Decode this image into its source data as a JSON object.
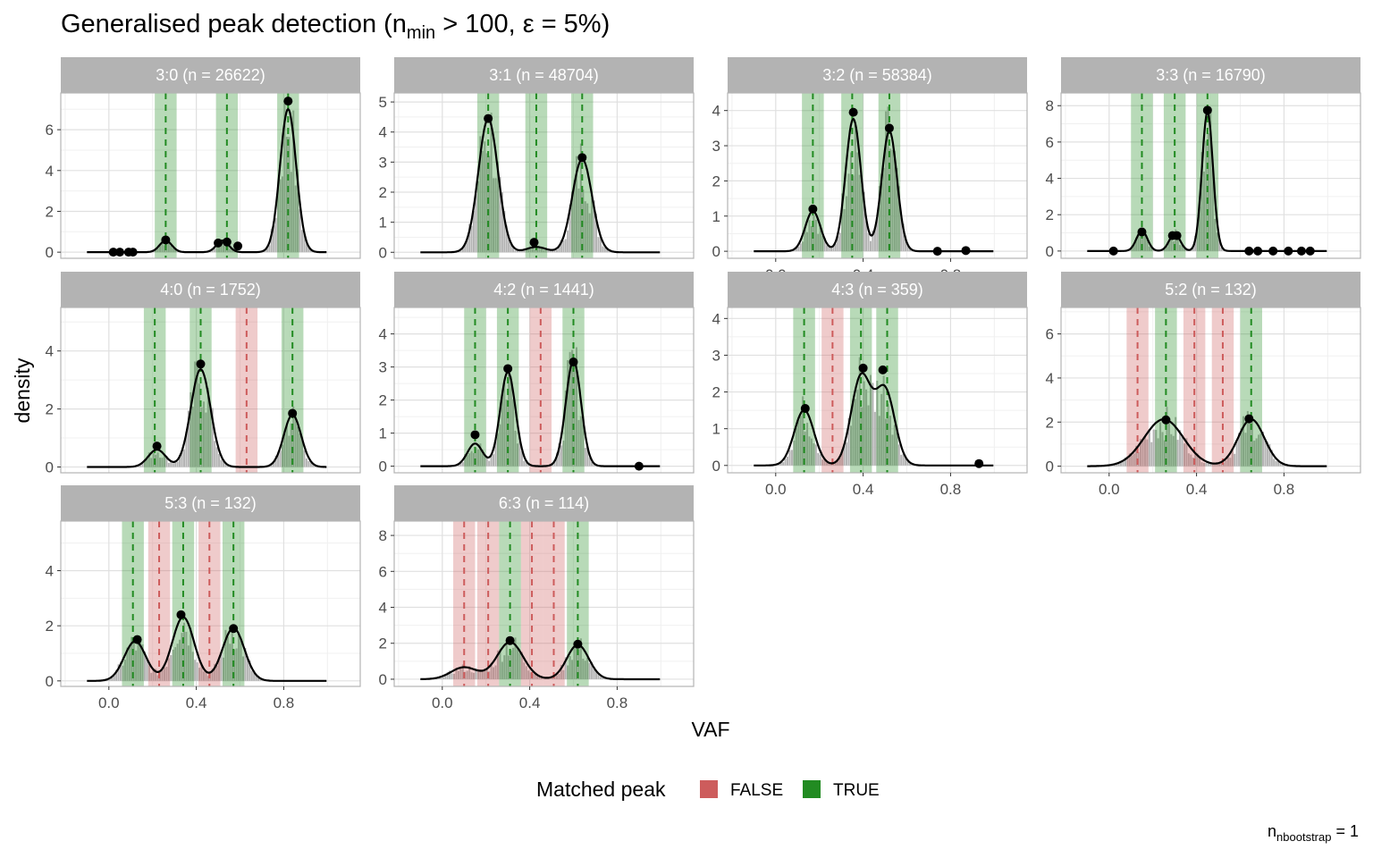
{
  "title": {
    "prefix": "Generalised peak detection (n",
    "sub": "min",
    "suffix": " > 100, ε = 5%)"
  },
  "caption": {
    "prefix": "n",
    "sub": "nbootstrap",
    "suffix": " = 1"
  },
  "legend": {
    "title": "Matched peak",
    "items": [
      {
        "label": "FALSE",
        "color": "#cd5c5c"
      },
      {
        "label": "TRUE",
        "color": "#228b22"
      }
    ]
  },
  "colors": {
    "matched": "#228b22",
    "unmatched": "#cd5c5c",
    "histogram": "#b3b3b3",
    "density": "#000000",
    "strip": "#b3b3b3",
    "grid_major": "#e0e0e0",
    "grid_minor": "#f0f0f0",
    "panel_border": "#b3b3b3"
  },
  "chart_data": {
    "type": "faceted-histogram-density",
    "xlabel": "VAF",
    "ylabel": "density",
    "x_ticks": [
      0.0,
      0.4,
      0.8
    ],
    "x_tick_labels": [
      "0.0",
      "0.4",
      "0.8"
    ],
    "xlim": [
      -0.22,
      1.15
    ],
    "grid": true,
    "legend_position": "bottom",
    "facets": [
      {
        "label": "3:0 (n = 26622)",
        "ylim": [
          -0.3,
          7.8
        ],
        "y_ticks": [
          0,
          2,
          4,
          6
        ],
        "peaks": [
          {
            "x": 0.26,
            "matched": true
          },
          {
            "x": 0.54,
            "matched": true
          },
          {
            "x": 0.82,
            "matched": true
          }
        ],
        "components": [
          {
            "mu": 0.26,
            "sigma": 0.028,
            "w": 0.04
          },
          {
            "mu": 0.52,
            "sigma": 0.028,
            "w": 0.04
          },
          {
            "mu": 0.82,
            "sigma": 0.037,
            "w": 0.65
          }
        ],
        "detected": [
          [
            0.02,
            0.0
          ],
          [
            0.05,
            0.0
          ],
          [
            0.09,
            0.0
          ],
          [
            0.11,
            0.0
          ],
          [
            0.26,
            0.6
          ],
          [
            0.5,
            0.45
          ],
          [
            0.54,
            0.5
          ],
          [
            0.59,
            0.3
          ],
          [
            0.82,
            7.4
          ]
        ]
      },
      {
        "label": "3:1 (n = 48704)",
        "ylim": [
          -0.2,
          5.3
        ],
        "y_ticks": [
          0,
          1,
          2,
          3,
          4,
          5
        ],
        "peaks": [
          {
            "x": 0.21,
            "matched": true
          },
          {
            "x": 0.43,
            "matched": true
          },
          {
            "x": 0.64,
            "matched": true
          }
        ],
        "components": [
          {
            "mu": 0.21,
            "sigma": 0.045,
            "w": 0.5
          },
          {
            "mu": 0.43,
            "sigma": 0.045,
            "w": 0.02
          },
          {
            "mu": 0.64,
            "sigma": 0.045,
            "w": 0.35
          }
        ],
        "detected": [
          [
            0.21,
            4.45
          ],
          [
            0.42,
            0.33
          ],
          [
            0.64,
            3.15
          ]
        ]
      },
      {
        "label": "3:2 (n = 58384)",
        "ylim": [
          -0.2,
          4.5
        ],
        "y_ticks": [
          0,
          1,
          2,
          3,
          4
        ],
        "peaks": [
          {
            "x": 0.17,
            "matched": true
          },
          {
            "x": 0.35,
            "matched": true
          },
          {
            "x": 0.52,
            "matched": true
          }
        ],
        "components": [
          {
            "mu": 0.17,
            "sigma": 0.035,
            "w": 0.1
          },
          {
            "mu": 0.355,
            "sigma": 0.035,
            "w": 0.33
          },
          {
            "mu": 0.52,
            "sigma": 0.035,
            "w": 0.3
          }
        ],
        "detected": [
          [
            0.17,
            1.2
          ],
          [
            0.355,
            3.95
          ],
          [
            0.52,
            3.5
          ],
          [
            0.74,
            0.0
          ],
          [
            0.87,
            0.02
          ]
        ]
      },
      {
        "label": "3:3 (n = 16790)",
        "ylim": [
          -0.4,
          8.7
        ],
        "y_ticks": [
          0,
          2,
          4,
          6,
          8
        ],
        "peaks": [
          {
            "x": 0.15,
            "matched": true
          },
          {
            "x": 0.3,
            "matched": true
          },
          {
            "x": 0.45,
            "matched": true
          }
        ],
        "components": [
          {
            "mu": 0.15,
            "sigma": 0.025,
            "w": 0.07
          },
          {
            "mu": 0.3,
            "sigma": 0.025,
            "w": 0.06
          },
          {
            "mu": 0.45,
            "sigma": 0.025,
            "w": 0.48
          }
        ],
        "detected": [
          [
            0.02,
            0.0
          ],
          [
            0.15,
            1.05
          ],
          [
            0.29,
            0.85
          ],
          [
            0.31,
            0.85
          ],
          [
            0.45,
            7.75
          ],
          [
            0.64,
            0.0
          ],
          [
            0.68,
            0.0
          ],
          [
            0.75,
            0.0
          ],
          [
            0.82,
            0.0
          ],
          [
            0.88,
            0.0
          ],
          [
            0.92,
            0.0
          ]
        ]
      },
      {
        "label": "4:0 (n = 1752)",
        "ylim": [
          -0.2,
          5.5
        ],
        "y_ticks": [
          0,
          2,
          4
        ],
        "peaks": [
          {
            "x": 0.21,
            "matched": true
          },
          {
            "x": 0.42,
            "matched": true
          },
          {
            "x": 0.63,
            "matched": false
          },
          {
            "x": 0.84,
            "matched": true
          }
        ],
        "components": [
          {
            "mu": 0.22,
            "sigma": 0.04,
            "w": 0.06
          },
          {
            "mu": 0.42,
            "sigma": 0.045,
            "w": 0.38
          },
          {
            "mu": 0.84,
            "sigma": 0.04,
            "w": 0.18
          }
        ],
        "detected": [
          [
            0.22,
            0.72
          ],
          [
            0.42,
            3.55
          ],
          [
            0.84,
            1.85
          ]
        ]
      },
      {
        "label": "4:2 (n = 1441)",
        "ylim": [
          -0.2,
          4.8
        ],
        "y_ticks": [
          0,
          1,
          2,
          3,
          4
        ],
        "peaks": [
          {
            "x": 0.15,
            "matched": true
          },
          {
            "x": 0.3,
            "matched": true
          },
          {
            "x": 0.45,
            "matched": false
          },
          {
            "x": 0.6,
            "matched": true
          }
        ],
        "components": [
          {
            "mu": 0.15,
            "sigma": 0.035,
            "w": 0.06
          },
          {
            "mu": 0.3,
            "sigma": 0.035,
            "w": 0.25
          },
          {
            "mu": 0.6,
            "sigma": 0.035,
            "w": 0.28
          }
        ],
        "detected": [
          [
            0.15,
            0.95
          ],
          [
            0.3,
            2.95
          ],
          [
            0.6,
            3.15
          ],
          [
            0.9,
            0.0
          ]
        ]
      },
      {
        "label": "4:3 (n = 359)",
        "ylim": [
          -0.2,
          4.3
        ],
        "y_ticks": [
          0,
          1,
          2,
          3,
          4
        ],
        "peaks": [
          {
            "x": 0.13,
            "matched": true
          },
          {
            "x": 0.26,
            "matched": false
          },
          {
            "x": 0.39,
            "matched": true
          },
          {
            "x": 0.51,
            "matched": true
          }
        ],
        "components": [
          {
            "mu": 0.13,
            "sigma": 0.045,
            "w": 0.17
          },
          {
            "mu": 0.39,
            "sigma": 0.045,
            "w": 0.27
          },
          {
            "mu": 0.5,
            "sigma": 0.045,
            "w": 0.23
          }
        ],
        "detected": [
          [
            0.135,
            1.55
          ],
          [
            0.4,
            2.65
          ],
          [
            0.49,
            2.6
          ],
          [
            0.93,
            0.05
          ]
        ]
      },
      {
        "label": "5:2 (n = 132)",
        "ylim": [
          -0.3,
          7.2
        ],
        "y_ticks": [
          0,
          2,
          4,
          6
        ],
        "peaks": [
          {
            "x": 0.13,
            "matched": false
          },
          {
            "x": 0.26,
            "matched": true
          },
          {
            "x": 0.39,
            "matched": false
          },
          {
            "x": 0.52,
            "matched": false
          },
          {
            "x": 0.65,
            "matched": true
          }
        ],
        "components": [
          {
            "mu": 0.25,
            "sigma": 0.09,
            "w": 0.48
          },
          {
            "mu": 0.65,
            "sigma": 0.06,
            "w": 0.32
          }
        ],
        "detected": [
          [
            0.26,
            2.1
          ],
          [
            0.64,
            2.15
          ]
        ]
      },
      {
        "label": "5:3 (n = 132)",
        "ylim": [
          -0.2,
          5.8
        ],
        "y_ticks": [
          0,
          2,
          4
        ],
        "peaks": [
          {
            "x": 0.11,
            "matched": true
          },
          {
            "x": 0.23,
            "matched": false
          },
          {
            "x": 0.34,
            "matched": true
          },
          {
            "x": 0.46,
            "matched": false
          },
          {
            "x": 0.57,
            "matched": true
          }
        ],
        "components": [
          {
            "mu": 0.12,
            "sigma": 0.05,
            "w": 0.18
          },
          {
            "mu": 0.34,
            "sigma": 0.05,
            "w": 0.29
          },
          {
            "mu": 0.57,
            "sigma": 0.05,
            "w": 0.24
          }
        ],
        "detected": [
          [
            0.13,
            1.5
          ],
          [
            0.33,
            2.4
          ],
          [
            0.57,
            1.9
          ]
        ]
      },
      {
        "label": "6:3 (n = 114)",
        "ylim": [
          -0.4,
          8.8
        ],
        "y_ticks": [
          0,
          2,
          4,
          6,
          8
        ],
        "peaks": [
          {
            "x": 0.1,
            "matched": false
          },
          {
            "x": 0.21,
            "matched": false
          },
          {
            "x": 0.31,
            "matched": true
          },
          {
            "x": 0.41,
            "matched": false
          },
          {
            "x": 0.51,
            "matched": false
          },
          {
            "x": 0.62,
            "matched": true
          }
        ],
        "components": [
          {
            "mu": 0.1,
            "sigma": 0.06,
            "w": 0.1
          },
          {
            "mu": 0.31,
            "sigma": 0.06,
            "w": 0.31
          },
          {
            "mu": 0.62,
            "sigma": 0.05,
            "w": 0.24
          }
        ],
        "detected": [
          [
            0.31,
            2.15
          ],
          [
            0.62,
            1.95
          ]
        ]
      }
    ]
  }
}
